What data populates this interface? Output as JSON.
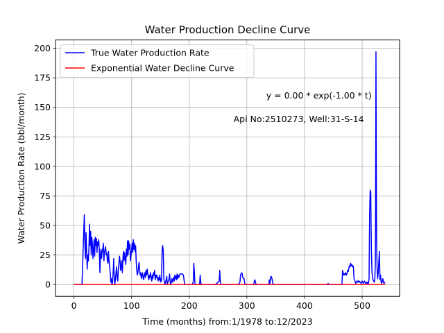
{
  "chart_data": {
    "type": "line",
    "title": "Water Production Decline Curve",
    "xlabel": "Time (months) from:1/1978 to:12/2023",
    "ylabel": "Water Production Rate (bbl/month)",
    "xlim": [
      -32,
      565
    ],
    "ylim": [
      -10,
      207
    ],
    "xticks": [
      0,
      100,
      200,
      300,
      400,
      500
    ],
    "yticks": [
      0,
      25,
      50,
      75,
      100,
      125,
      150,
      175,
      200
    ],
    "grid": true,
    "legend_position": "top-left",
    "annotations": [
      {
        "text": "y = 0.00 * exp(-1.00 * t)",
        "x": 425,
        "y": 160
      },
      {
        "text": "Api No:2510273, Well:31-S-14",
        "x": 390,
        "y": 140
      }
    ],
    "series": [
      {
        "name": "True Water Production Rate",
        "color": "#0000ff",
        "points": [
          [
            0,
            0
          ],
          [
            10,
            0
          ],
          [
            14,
            0
          ],
          [
            16,
            30
          ],
          [
            17,
            45
          ],
          [
            18,
            59
          ],
          [
            19,
            35
          ],
          [
            20,
            22
          ],
          [
            21,
            44
          ],
          [
            22,
            28
          ],
          [
            23,
            13
          ],
          [
            24,
            25
          ],
          [
            25,
            20
          ],
          [
            26,
            30
          ],
          [
            27,
            51
          ],
          [
            28,
            33
          ],
          [
            29,
            45
          ],
          [
            30,
            25
          ],
          [
            31,
            40
          ],
          [
            32,
            35
          ],
          [
            33,
            22
          ],
          [
            34,
            30
          ],
          [
            35,
            38
          ],
          [
            36,
            24
          ],
          [
            37,
            40
          ],
          [
            38,
            33
          ],
          [
            39,
            39
          ],
          [
            40,
            27
          ],
          [
            41,
            36
          ],
          [
            42,
            33
          ],
          [
            43,
            38
          ],
          [
            44,
            30
          ],
          [
            45,
            10
          ],
          [
            46,
            25
          ],
          [
            47,
            30
          ],
          [
            48,
            22
          ],
          [
            49,
            28
          ],
          [
            50,
            30
          ],
          [
            51,
            35
          ],
          [
            52,
            20
          ],
          [
            53,
            28
          ],
          [
            54,
            30
          ],
          [
            55,
            32
          ],
          [
            56,
            25
          ],
          [
            57,
            27
          ],
          [
            58,
            20
          ],
          [
            59,
            18
          ],
          [
            60,
            28
          ],
          [
            61,
            20
          ],
          [
            62,
            15
          ],
          [
            63,
            10
          ],
          [
            64,
            2
          ],
          [
            65,
            5
          ],
          [
            66,
            0
          ],
          [
            67,
            2
          ],
          [
            68,
            10
          ],
          [
            69,
            22
          ],
          [
            70,
            5
          ],
          [
            71,
            0
          ],
          [
            72,
            5
          ],
          [
            73,
            10
          ],
          [
            74,
            15
          ],
          [
            75,
            5
          ],
          [
            76,
            3
          ],
          [
            77,
            12
          ],
          [
            78,
            18
          ],
          [
            79,
            24
          ],
          [
            80,
            20
          ],
          [
            81,
            12
          ],
          [
            82,
            15
          ],
          [
            83,
            20
          ],
          [
            84,
            10
          ],
          [
            85,
            22
          ],
          [
            86,
            28
          ],
          [
            87,
            20
          ],
          [
            88,
            27
          ],
          [
            89,
            22
          ],
          [
            90,
            17
          ],
          [
            91,
            30
          ],
          [
            92,
            24
          ],
          [
            93,
            37
          ],
          [
            94,
            25
          ],
          [
            95,
            37
          ],
          [
            96,
            30
          ],
          [
            97,
            34
          ],
          [
            98,
            20
          ],
          [
            99,
            25
          ],
          [
            100,
            30
          ],
          [
            101,
            35
          ],
          [
            102,
            27
          ],
          [
            103,
            38
          ],
          [
            104,
            30
          ],
          [
            105,
            35
          ],
          [
            106,
            28
          ],
          [
            107,
            33
          ],
          [
            108,
            20
          ],
          [
            109,
            12
          ],
          [
            110,
            8
          ],
          [
            111,
            10
          ],
          [
            112,
            15
          ],
          [
            113,
            19
          ],
          [
            114,
            12
          ],
          [
            115,
            8
          ],
          [
            116,
            10
          ],
          [
            117,
            5
          ],
          [
            118,
            8
          ],
          [
            119,
            10
          ],
          [
            120,
            6
          ],
          [
            121,
            4
          ],
          [
            122,
            8
          ],
          [
            123,
            10
          ],
          [
            124,
            6
          ],
          [
            125,
            12
          ],
          [
            126,
            8
          ],
          [
            127,
            13
          ],
          [
            128,
            10
          ],
          [
            129,
            6
          ],
          [
            130,
            4
          ],
          [
            131,
            8
          ],
          [
            132,
            6
          ],
          [
            133,
            10
          ],
          [
            134,
            5
          ],
          [
            135,
            3
          ],
          [
            136,
            8
          ],
          [
            137,
            5
          ],
          [
            138,
            10
          ],
          [
            139,
            8
          ],
          [
            140,
            12
          ],
          [
            141,
            4
          ],
          [
            142,
            8
          ],
          [
            143,
            6
          ],
          [
            144,
            8
          ],
          [
            145,
            5
          ],
          [
            146,
            3
          ],
          [
            147,
            6
          ],
          [
            148,
            4
          ],
          [
            149,
            8
          ],
          [
            150,
            2
          ],
          [
            151,
            5
          ],
          [
            152,
            3
          ],
          [
            153,
            30
          ],
          [
            154,
            33
          ],
          [
            155,
            28
          ],
          [
            156,
            5
          ],
          [
            157,
            2
          ],
          [
            158,
            0
          ],
          [
            160,
            4
          ],
          [
            161,
            7
          ],
          [
            162,
            0
          ],
          [
            163,
            2
          ],
          [
            165,
            5
          ],
          [
            166,
            9
          ],
          [
            167,
            2
          ],
          [
            168,
            0
          ],
          [
            170,
            5
          ],
          [
            171,
            2
          ],
          [
            173,
            6
          ],
          [
            174,
            3
          ],
          [
            175,
            8
          ],
          [
            176,
            5
          ],
          [
            177,
            7
          ],
          [
            178,
            4
          ],
          [
            179,
            9
          ],
          [
            180,
            5
          ],
          [
            181,
            8
          ],
          [
            182,
            6
          ],
          [
            184,
            9
          ],
          [
            186,
            9
          ],
          [
            188,
            9
          ],
          [
            190,
            8
          ],
          [
            192,
            0
          ],
          [
            195,
            0
          ],
          [
            200,
            0
          ],
          [
            205,
            0
          ],
          [
            207,
            2
          ],
          [
            208,
            18
          ],
          [
            209,
            10
          ],
          [
            210,
            0
          ],
          [
            215,
            0
          ],
          [
            218,
            0
          ],
          [
            219,
            8
          ],
          [
            220,
            2
          ],
          [
            221,
            0
          ],
          [
            230,
            0
          ],
          [
            240,
            0
          ],
          [
            245,
            0
          ],
          [
            248,
            1
          ],
          [
            250,
            2
          ],
          [
            252,
            3
          ],
          [
            253,
            12
          ],
          [
            254,
            2
          ],
          [
            255,
            0
          ],
          [
            260,
            0
          ],
          [
            270,
            0
          ],
          [
            280,
            0
          ],
          [
            285,
            0
          ],
          [
            288,
            2
          ],
          [
            289,
            8
          ],
          [
            290,
            9
          ],
          [
            291,
            10
          ],
          [
            292,
            9
          ],
          [
            293,
            6
          ],
          [
            294,
            5
          ],
          [
            295,
            5
          ],
          [
            296,
            2
          ],
          [
            297,
            0
          ],
          [
            300,
            0
          ],
          [
            305,
            0
          ],
          [
            310,
            0
          ],
          [
            312,
            0
          ],
          [
            313,
            3
          ],
          [
            314,
            4
          ],
          [
            315,
            2
          ],
          [
            316,
            0
          ],
          [
            318,
            0
          ],
          [
            320,
            0
          ],
          [
            325,
            0
          ],
          [
            330,
            0
          ],
          [
            335,
            0
          ],
          [
            338,
            0
          ],
          [
            339,
            4
          ],
          [
            340,
            1
          ],
          [
            341,
            6
          ],
          [
            342,
            7
          ],
          [
            343,
            6
          ],
          [
            344,
            4
          ],
          [
            345,
            1
          ],
          [
            346,
            0
          ],
          [
            350,
            0
          ],
          [
            360,
            0
          ],
          [
            380,
            0
          ],
          [
            400,
            0
          ],
          [
            420,
            0
          ],
          [
            440,
            0
          ],
          [
            441,
            1
          ],
          [
            442,
            0
          ],
          [
            460,
            0
          ],
          [
            465,
            0
          ],
          [
            466,
            12
          ],
          [
            467,
            10
          ],
          [
            468,
            8
          ],
          [
            469,
            9
          ],
          [
            470,
            8
          ],
          [
            471,
            10
          ],
          [
            472,
            9
          ],
          [
            473,
            8
          ],
          [
            474,
            10
          ],
          [
            475,
            12
          ],
          [
            476,
            11
          ],
          [
            477,
            14
          ],
          [
            478,
            16
          ],
          [
            479,
            15
          ],
          [
            480,
            18
          ],
          [
            481,
            16
          ],
          [
            482,
            17
          ],
          [
            483,
            15
          ],
          [
            484,
            16
          ],
          [
            485,
            14
          ],
          [
            486,
            5
          ],
          [
            487,
            4
          ],
          [
            488,
            2
          ],
          [
            489,
            1
          ],
          [
            490,
            2
          ],
          [
            491,
            3
          ],
          [
            492,
            2
          ],
          [
            493,
            3
          ],
          [
            494,
            2
          ],
          [
            495,
            3
          ],
          [
            496,
            2
          ],
          [
            497,
            2
          ],
          [
            498,
            1
          ],
          [
            499,
            2
          ],
          [
            500,
            3
          ],
          [
            501,
            2
          ],
          [
            502,
            1
          ],
          [
            503,
            2
          ],
          [
            504,
            3
          ],
          [
            505,
            2
          ],
          [
            506,
            1
          ],
          [
            507,
            1
          ],
          [
            508,
            2
          ],
          [
            509,
            1
          ],
          [
            510,
            2
          ],
          [
            511,
            1
          ],
          [
            512,
            5
          ],
          [
            513,
            60
          ],
          [
            514,
            80
          ],
          [
            515,
            78
          ],
          [
            516,
            30
          ],
          [
            517,
            12
          ],
          [
            518,
            6
          ],
          [
            519,
            4
          ],
          [
            520,
            3
          ],
          [
            521,
            2
          ],
          [
            522,
            4
          ],
          [
            523,
            20
          ],
          [
            524,
            197
          ],
          [
            525,
            40
          ],
          [
            526,
            12
          ],
          [
            527,
            5
          ],
          [
            528,
            10
          ],
          [
            529,
            20
          ],
          [
            530,
            28
          ],
          [
            531,
            4
          ],
          [
            532,
            8
          ],
          [
            533,
            2
          ],
          [
            534,
            1
          ],
          [
            535,
            3
          ],
          [
            536,
            5
          ],
          [
            537,
            2
          ],
          [
            538,
            1
          ],
          [
            539,
            2
          ],
          [
            540,
            2
          ]
        ]
      },
      {
        "name": "Exponential Water Decline Curve",
        "color": "#ff0000",
        "points": [
          [
            0,
            0
          ],
          [
            540,
            0
          ]
        ]
      }
    ]
  }
}
